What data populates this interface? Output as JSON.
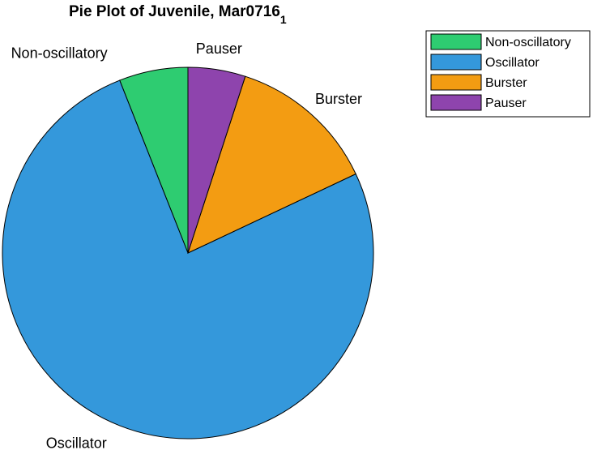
{
  "chart_data": {
    "type": "pie",
    "title": "Pie Plot of Juvenile, Mar0716",
    "title_subscript": "1",
    "categories": [
      "Non-oscillatory",
      "Oscillator",
      "Burster",
      "Pauser"
    ],
    "values": [
      6,
      76,
      13,
      5
    ],
    "colors": [
      "#2ecc71",
      "#3498db",
      "#f39c12",
      "#8e44ad"
    ],
    "legend": {
      "entries": [
        "Non-oscillatory",
        "Oscillator",
        "Burster",
        "Pauser"
      ],
      "placement": "top-right"
    }
  }
}
